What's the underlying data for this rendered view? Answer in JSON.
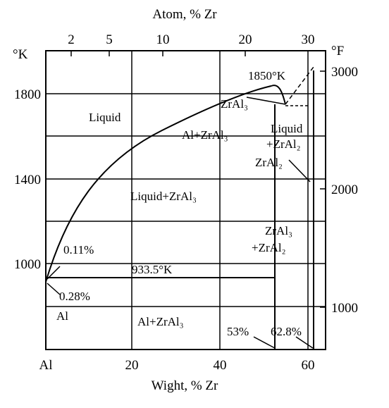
{
  "axes": {
    "top_label": "Atom, % Zr",
    "bottom_label": "Wight, % Zr",
    "left_unit": "°K",
    "right_unit": "°F",
    "top_ticks": [
      "2",
      "5",
      "10",
      "20",
      "30"
    ],
    "bottom_ticks": [
      "Al",
      "20",
      "40",
      "60"
    ],
    "left_ticks": [
      "1800",
      "1400",
      "1000"
    ],
    "right_ticks": [
      "3000",
      "2000",
      "1000"
    ]
  },
  "labels": {
    "peak": "1850°K",
    "zral3_top": "ZrAl₃",
    "liquid": "Liquid",
    "al_zral3_upper": "Al+ZrAl₃",
    "liquid_zral2": "Liquid",
    "plus_zral2": "+ZrAl₂",
    "zral2": "ZrAl₂",
    "liquid_zral3": "Liquid+ZrAl₃",
    "zral3_mid": "ZrAl₃",
    "plus_zral2_mid": "+ZrAl₂",
    "p011": "0.11%",
    "eutectic": "933.5°K",
    "p028": "0.28%",
    "al": "Al",
    "al_zral3_lower": "Al+ZrAl₃",
    "p53": "53%",
    "p628": "62.8%"
  }
}
